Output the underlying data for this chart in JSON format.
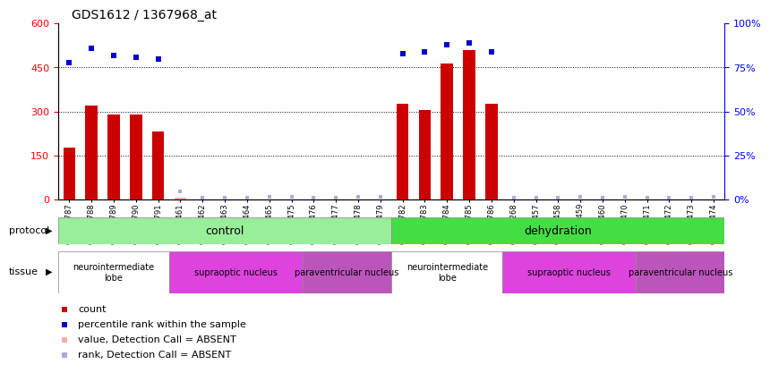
{
  "title": "GDS1612 / 1367968_at",
  "samples": [
    "GSM69787",
    "GSM69788",
    "GSM69789",
    "GSM69790",
    "GSM69791",
    "GSM69461",
    "GSM69462",
    "GSM69463",
    "GSM69464",
    "GSM69465",
    "GSM69475",
    "GSM69476",
    "GSM69477",
    "GSM69478",
    "GSM69479",
    "GSM69782",
    "GSM69783",
    "GSM69784",
    "GSM69785",
    "GSM69786",
    "GSM69268",
    "GSM69457",
    "GSM69458",
    "GSM69459",
    "GSM69460",
    "GSM69470",
    "GSM69471",
    "GSM69472",
    "GSM69473",
    "GSM69474"
  ],
  "bar_values": [
    175,
    320,
    290,
    288,
    230,
    5,
    0,
    0,
    0,
    0,
    0,
    0,
    0,
    0,
    0,
    325,
    305,
    462,
    510,
    325,
    0,
    0,
    0,
    0,
    0,
    0,
    0,
    0,
    0,
    0
  ],
  "bar_absent": [
    false,
    false,
    false,
    false,
    false,
    true,
    false,
    false,
    false,
    false,
    false,
    false,
    false,
    false,
    false,
    false,
    false,
    false,
    false,
    false,
    false,
    false,
    false,
    false,
    false,
    false,
    false,
    false,
    false,
    false
  ],
  "percentile_values": [
    78,
    86,
    82,
    81,
    80,
    null,
    null,
    null,
    null,
    null,
    null,
    null,
    null,
    null,
    null,
    83,
    84,
    88,
    89,
    84,
    null,
    null,
    null,
    null,
    null,
    null,
    null,
    null,
    null,
    null
  ],
  "small_rank_values": [
    null,
    null,
    null,
    null,
    null,
    28,
    5,
    5,
    5,
    8,
    8,
    5,
    5,
    8,
    8,
    null,
    null,
    null,
    null,
    null,
    5,
    5,
    5,
    8,
    5,
    8,
    5,
    5,
    5,
    8
  ],
  "ylim_left": [
    0,
    600
  ],
  "ylim_right": [
    0,
    100
  ],
  "yticks_left": [
    0,
    150,
    300,
    450,
    600
  ],
  "yticks_right": [
    0,
    25,
    50,
    75,
    100
  ],
  "bar_color": "#cc0000",
  "bar_absent_color": "#ffaaaa",
  "percentile_color": "#0000cc",
  "rank_color": "#aaaadd",
  "bg_color": "#ffffff",
  "protocol_groups": [
    {
      "label": "control",
      "start": 0,
      "end": 14,
      "color": "#99ee99"
    },
    {
      "label": "dehydration",
      "start": 15,
      "end": 29,
      "color": "#44dd44"
    }
  ],
  "tissue_groups": [
    {
      "label": "neurointermediate\nlobe",
      "start": 0,
      "end": 4,
      "color": "#ffffff"
    },
    {
      "label": "supraoptic nucleus",
      "start": 5,
      "end": 10,
      "color": "#dd44dd"
    },
    {
      "label": "paraventricular nucleus",
      "start": 11,
      "end": 14,
      "color": "#bb66bb"
    },
    {
      "label": "neurointermediate\nlobe",
      "start": 15,
      "end": 19,
      "color": "#ffffff"
    },
    {
      "label": "supraoptic nucleus",
      "start": 20,
      "end": 25,
      "color": "#dd44dd"
    },
    {
      "label": "paraventricular nucleus",
      "start": 26,
      "end": 29,
      "color": "#bb66bb"
    }
  ],
  "legend_items": [
    {
      "label": "count",
      "color": "#cc0000"
    },
    {
      "label": "percentile rank within the sample",
      "color": "#0000cc"
    },
    {
      "label": "value, Detection Call = ABSENT",
      "color": "#ffaaaa"
    },
    {
      "label": "rank, Detection Call = ABSENT",
      "color": "#aaaadd"
    }
  ]
}
